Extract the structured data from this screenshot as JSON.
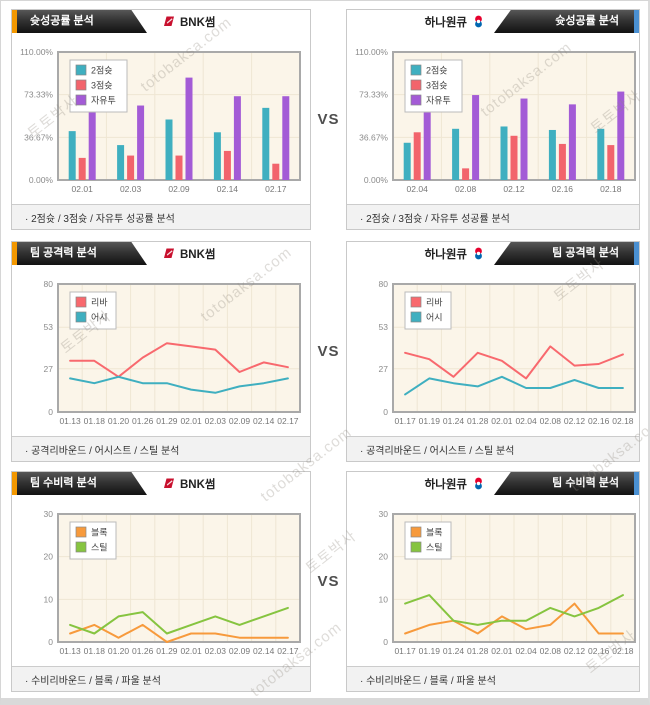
{
  "page": {
    "vs_label": "VS"
  },
  "teams": {
    "left": {
      "name": "BNK썸"
    },
    "right": {
      "name": "하나원큐"
    }
  },
  "sections": [
    {
      "title": "슛성공률 분석",
      "caption": "· 2점슛 / 3점슛 / 자유투 성공률 분석"
    },
    {
      "title": "팀 공격력 분석",
      "caption": "· 공격리바운드 / 어시스트 / 스틸 분석"
    },
    {
      "title": "팀 수비력 분석",
      "caption": "· 수비리바운드 / 블록 / 파울 분석"
    }
  ],
  "watermark": {
    "site_name": "토토박사",
    "site_url": "totobaksa.com"
  },
  "colors": {
    "accent_orange": "#F39800",
    "accent_blue": "#4A90D2",
    "tab_dark": "#2B2B2B",
    "plot_bg": "#FBF5E9",
    "grid": "#EFE6D3",
    "plot_border": "#A9A9A9",
    "bar_teal": "#3FAFC0",
    "bar_red": "#F2646C",
    "bar_purple": "#A35BD6",
    "line_red": "#F8696E",
    "line_teal": "#3FAFC0",
    "line_orange": "#F79A3C",
    "line_green": "#86C440"
  },
  "chart_data": [
    {
      "id": "shot-success-left",
      "type": "bar",
      "title": "슛성공률 분석 (BNK썸)",
      "categories": [
        "02.01",
        "02.03",
        "02.09",
        "02.14",
        "02.17"
      ],
      "series": [
        {
          "name": "2점슛",
          "color": "#3FAFC0",
          "values": [
            42,
            30,
            52,
            41,
            62
          ]
        },
        {
          "name": "3점슛",
          "color": "#F2646C",
          "values": [
            19,
            21,
            21,
            25,
            14
          ]
        },
        {
          "name": "자유투",
          "color": "#A35BD6",
          "values": [
            60,
            64,
            88,
            72,
            72
          ]
        }
      ],
      "ylim": [
        0,
        110
      ],
      "yticks": [
        0,
        36.67,
        73.33,
        110
      ],
      "ytick_labels": [
        "0.00%",
        "36.67%",
        "73.33%",
        "110.00%"
      ],
      "grid": true,
      "legend_position": "top-left"
    },
    {
      "id": "shot-success-right",
      "type": "bar",
      "title": "슛성공률 분석 (하나원큐)",
      "categories": [
        "02.04",
        "02.08",
        "02.12",
        "02.16",
        "02.18"
      ],
      "series": [
        {
          "name": "2점슛",
          "color": "#3FAFC0",
          "values": [
            32,
            44,
            46,
            43,
            44
          ]
        },
        {
          "name": "3점슛",
          "color": "#F2646C",
          "values": [
            41,
            10,
            38,
            31,
            30
          ]
        },
        {
          "name": "자유투",
          "color": "#A35BD6",
          "values": [
            58,
            73,
            70,
            65,
            76
          ]
        }
      ],
      "ylim": [
        0,
        110
      ],
      "yticks": [
        0,
        36.67,
        73.33,
        110
      ],
      "ytick_labels": [
        "0.00%",
        "36.67%",
        "73.33%",
        "110.00%"
      ],
      "grid": true,
      "legend_position": "top-left"
    },
    {
      "id": "attack-left",
      "type": "line",
      "title": "팀 공격력 분석 (BNK썸)",
      "categories": [
        "01.13",
        "01.18",
        "01.20",
        "01.26",
        "01.29",
        "02.01",
        "02.03",
        "02.09",
        "02.14",
        "02.17"
      ],
      "series": [
        {
          "name": "리바",
          "color": "#F8696E",
          "values": [
            32,
            32,
            22,
            34,
            43,
            41,
            39,
            25,
            31,
            28
          ]
        },
        {
          "name": "어시",
          "color": "#3FAFC0",
          "values": [
            21,
            18,
            22,
            18,
            18,
            14,
            12,
            16,
            18,
            21
          ]
        }
      ],
      "ylim": [
        0,
        80
      ],
      "yticks": [
        0,
        27,
        53,
        80
      ],
      "ytick_labels": [
        "0",
        "27",
        "53",
        "80"
      ],
      "grid": true,
      "legend_position": "top-left"
    },
    {
      "id": "attack-right",
      "type": "line",
      "title": "팀 공격력 분석 (하나원큐)",
      "categories": [
        "01.17",
        "01.19",
        "01.24",
        "01.28",
        "02.01",
        "02.04",
        "02.08",
        "02.12",
        "02.16",
        "02.18"
      ],
      "series": [
        {
          "name": "리바",
          "color": "#F8696E",
          "values": [
            37,
            33,
            22,
            37,
            32,
            21,
            41,
            29,
            30,
            36
          ]
        },
        {
          "name": "어시",
          "color": "#3FAFC0",
          "values": [
            11,
            21,
            18,
            16,
            22,
            15,
            15,
            20,
            15,
            15
          ]
        }
      ],
      "ylim": [
        0,
        80
      ],
      "yticks": [
        0,
        27,
        53,
        80
      ],
      "ytick_labels": [
        "0",
        "27",
        "53",
        "80"
      ],
      "grid": true,
      "legend_position": "top-left"
    },
    {
      "id": "defense-left",
      "type": "line",
      "title": "팀 수비력 분석 (BNK썸)",
      "categories": [
        "01.13",
        "01.18",
        "01.20",
        "01.26",
        "01.29",
        "02.01",
        "02.03",
        "02.09",
        "02.14",
        "02.17"
      ],
      "series": [
        {
          "name": "블록",
          "color": "#F79A3C",
          "values": [
            2,
            4,
            1,
            4,
            0,
            2,
            2,
            1,
            1,
            1
          ]
        },
        {
          "name": "스틸",
          "color": "#86C440",
          "values": [
            4,
            2,
            6,
            7,
            2,
            4,
            6,
            4,
            6,
            8
          ]
        }
      ],
      "ylim": [
        0,
        30
      ],
      "yticks": [
        0,
        10,
        20,
        30
      ],
      "ytick_labels": [
        "0",
        "10",
        "20",
        "30"
      ],
      "grid": true,
      "legend_position": "top-left"
    },
    {
      "id": "defense-right",
      "type": "line",
      "title": "팀 수비력 분석 (하나원큐)",
      "categories": [
        "01.17",
        "01.19",
        "01.24",
        "01.28",
        "02.01",
        "02.04",
        "02.08",
        "02.12",
        "02.16",
        "02.18"
      ],
      "series": [
        {
          "name": "블록",
          "color": "#F79A3C",
          "values": [
            2,
            4,
            5,
            2,
            6,
            3,
            4,
            9,
            2,
            2
          ]
        },
        {
          "name": "스틸",
          "color": "#86C440",
          "values": [
            9,
            11,
            5,
            4,
            5,
            5,
            8,
            6,
            8,
            11
          ]
        }
      ],
      "ylim": [
        0,
        30
      ],
      "yticks": [
        0,
        10,
        20,
        30
      ],
      "ytick_labels": [
        "0",
        "10",
        "20",
        "30"
      ],
      "grid": true,
      "legend_position": "top-left"
    }
  ]
}
